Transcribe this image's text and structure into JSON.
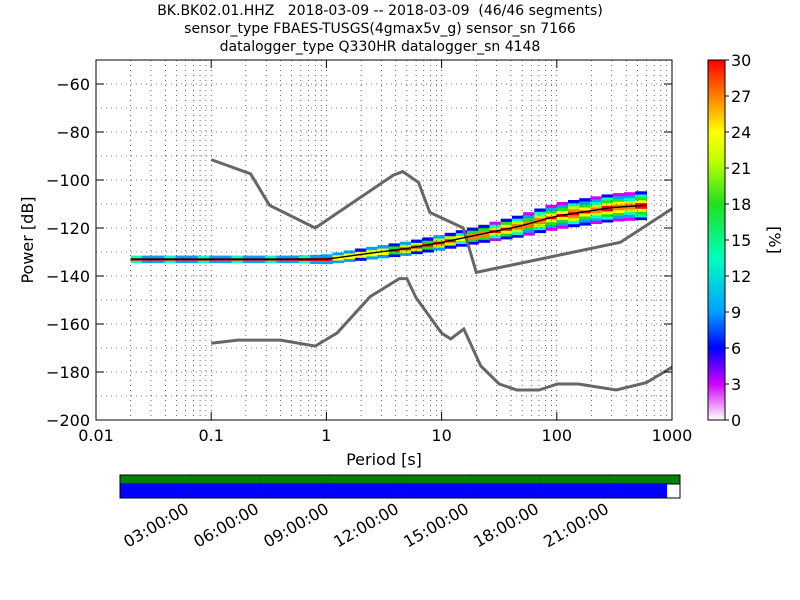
{
  "title_lines": [
    "BK.BK02.01.HHZ   2018-03-09 -- 2018-03-09  (46/46 segments)",
    "sensor_type FBAES-TUSGS(4gmax5v_g) sensor_sn 7166",
    "datalogger_type Q330HR datalogger_sn 4148"
  ],
  "chart_data": {
    "type": "heatmap",
    "xlabel": "Period [s]",
    "ylabel": "Power [dB]",
    "x_scale": "log",
    "xlim": [
      0.01,
      1000
    ],
    "ylim": [
      -200,
      -50
    ],
    "grid": true,
    "x_ticks": [
      {
        "value": 0.01,
        "label": "0.01"
      },
      {
        "value": 0.1,
        "label": "0.1"
      },
      {
        "value": 1,
        "label": "1"
      },
      {
        "value": 10,
        "label": "10"
      },
      {
        "value": 100,
        "label": "100"
      },
      {
        "value": 1000,
        "label": "1000"
      }
    ],
    "y_ticks": [
      {
        "value": -60,
        "label": "−60"
      },
      {
        "value": -80,
        "label": "−80"
      },
      {
        "value": -100,
        "label": "−100"
      },
      {
        "value": -120,
        "label": "−120"
      },
      {
        "value": -140,
        "label": "−140"
      },
      {
        "value": -160,
        "label": "−160"
      },
      {
        "value": -180,
        "label": "−180"
      },
      {
        "value": -200,
        "label": "−200"
      }
    ],
    "colorbar": {
      "label": "[%]",
      "range": [
        0,
        30
      ],
      "ticks": [
        "0",
        "3",
        "6",
        "9",
        "12",
        "15",
        "18",
        "21",
        "24",
        "27",
        "30"
      ]
    },
    "noise_models": [
      {
        "id": "nhnm",
        "points": [
          [
            0.1,
            -91.5
          ],
          [
            0.22,
            -97.4
          ],
          [
            0.32,
            -110.5
          ],
          [
            0.8,
            -120
          ],
          [
            3.8,
            -98
          ],
          [
            4.6,
            -96.5
          ],
          [
            6.3,
            -101
          ],
          [
            7.9,
            -113.5
          ],
          [
            15.4,
            -120
          ],
          [
            20,
            -138.5
          ],
          [
            354.8,
            -126
          ],
          [
            1000,
            -112
          ]
        ]
      },
      {
        "id": "nlnm",
        "points": [
          [
            0.1,
            -168
          ],
          [
            0.17,
            -166.7
          ],
          [
            0.4,
            -166.7
          ],
          [
            0.8,
            -169.2
          ],
          [
            1.24,
            -163.7
          ],
          [
            2.4,
            -148.6
          ],
          [
            4.3,
            -141.1
          ],
          [
            5,
            -141.1
          ],
          [
            6,
            -149
          ],
          [
            10,
            -163.8
          ],
          [
            12,
            -166.2
          ],
          [
            15.6,
            -162.1
          ],
          [
            21.9,
            -177.5
          ],
          [
            31.6,
            -185
          ],
          [
            45,
            -187.5
          ],
          [
            70,
            -187.5
          ],
          [
            101,
            -185
          ],
          [
            154,
            -185
          ],
          [
            328,
            -187.5
          ],
          [
            600,
            -184.4
          ],
          [
            1000,
            -178
          ]
        ]
      }
    ],
    "mean_psd": [
      [
        0.02,
        -133
      ],
      [
        0.05,
        -133
      ],
      [
        0.1,
        -133
      ],
      [
        0.3,
        -133
      ],
      [
        1,
        -133
      ],
      [
        2,
        -131
      ],
      [
        5,
        -128.5
      ],
      [
        10,
        -126
      ],
      [
        20,
        -123
      ],
      [
        50,
        -119
      ],
      [
        100,
        -115
      ],
      [
        300,
        -111.5
      ],
      [
        600,
        -110.5
      ]
    ],
    "psd_spread_db": [
      [
        0.02,
        1.5
      ],
      [
        0.5,
        1.5
      ],
      [
        2,
        2.5
      ],
      [
        20,
        3.5
      ],
      [
        100,
        5.5
      ],
      [
        600,
        6
      ]
    ],
    "data_availability": {
      "time_ticks": [
        "03:00:00",
        "06:00:00",
        "09:00:00",
        "12:00:00",
        "15:00:00",
        "18:00:00",
        "21:00:00"
      ],
      "available_fraction": 0.977,
      "colors": {
        "top_bar": "#008000",
        "coverage": "#0000ff",
        "gap": "#ffffff"
      }
    }
  }
}
